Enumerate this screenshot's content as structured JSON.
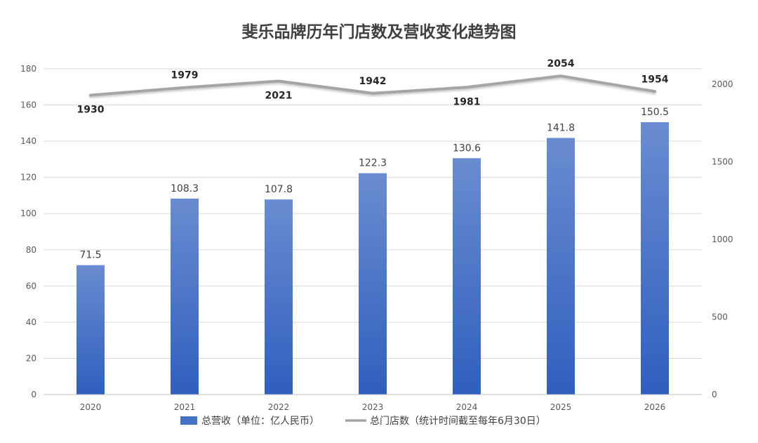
{
  "chart_data": {
    "type": "bar",
    "title": "斐乐品牌历年门店数及营收变化趋势图",
    "categories": [
      "2020",
      "2021",
      "2022",
      "2023",
      "2024",
      "2025",
      "2026"
    ],
    "series": [
      {
        "name": "总营收（单位：亿人民币）",
        "type": "bar",
        "axis": "left",
        "color": "#4472C4",
        "values": [
          71.5,
          108.3,
          107.8,
          122.3,
          130.6,
          141.8,
          150.5
        ],
        "labels": [
          "71.5",
          "108.3",
          "107.8",
          "122.3",
          "130.6",
          "141.8",
          "150.5"
        ]
      },
      {
        "name": "总门店数（统计时间截至每年6月30日）",
        "type": "line",
        "axis": "right",
        "color": "#A5A5A5",
        "values": [
          1930,
          1979,
          2021,
          1942,
          1981,
          2054,
          1954
        ],
        "labels": [
          "1930",
          "1979",
          "2021",
          "1942",
          "1981",
          "2054",
          "1954"
        ]
      }
    ],
    "y_left": {
      "ylim": [
        0,
        180
      ],
      "ticks": [
        "0",
        "20",
        "40",
        "60",
        "80",
        "100",
        "120",
        "140",
        "160",
        "180"
      ]
    },
    "y_right": {
      "ylim": [
        0,
        2100
      ],
      "ticks": [
        "0",
        "500",
        "1000",
        "1500",
        "2000"
      ],
      "tick_values": [
        0,
        500,
        1000,
        1500,
        2000
      ]
    },
    "grid": true,
    "legend": "bottom"
  }
}
